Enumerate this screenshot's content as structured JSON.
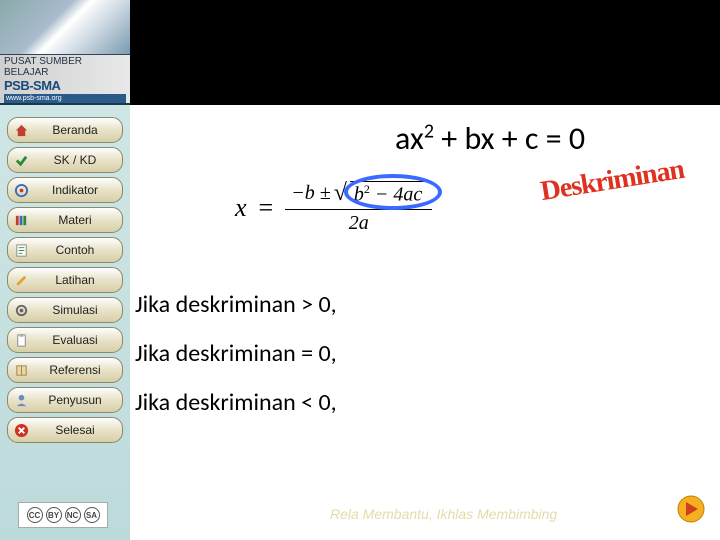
{
  "banner": {
    "subtitle": "PUSAT SUMBER BELAJAR",
    "logo_main": "PSB-SMA",
    "url": "www.psb-sma.org"
  },
  "sidebar": {
    "bg_gradient": [
      "#cfe6e6",
      "#bddada"
    ],
    "items": [
      {
        "label": "Beranda",
        "icon": "home"
      },
      {
        "label": "SK / KD",
        "icon": "check"
      },
      {
        "label": "Indikator",
        "icon": "target"
      },
      {
        "label": "Materi",
        "icon": "books"
      },
      {
        "label": "Contoh",
        "icon": "note"
      },
      {
        "label": "Latihan",
        "icon": "pencil"
      },
      {
        "label": "Simulasi",
        "icon": "gear"
      },
      {
        "label": "Evaluasi",
        "icon": "clipboard"
      },
      {
        "label": "Referensi",
        "icon": "book"
      },
      {
        "label": "Penyusun",
        "icon": "person"
      },
      {
        "label": "Selesai",
        "icon": "close"
      }
    ]
  },
  "content": {
    "equation_text": "ax² + bx + c = 0",
    "deskriminan_label": "Deskriminan",
    "deskriminan_color": "#e03020",
    "formula": {
      "lhs": "x",
      "eq": "=",
      "num_prefix": "−b ±",
      "sqrt_content": "b² − 4ac",
      "denominator": "2a",
      "highlight_color": "#3a6aff"
    },
    "conditions": [
      "Jika deskriminan > 0,",
      "Jika deskriminan = 0,",
      "Jika deskriminan < 0,"
    ],
    "footer": "Rela Membantu, Ikhlas Membimbing"
  },
  "nav": {
    "next_arrow_color": "#f4b020"
  },
  "license": {
    "badges": [
      "CC",
      "BY",
      "NC",
      "SA"
    ]
  }
}
